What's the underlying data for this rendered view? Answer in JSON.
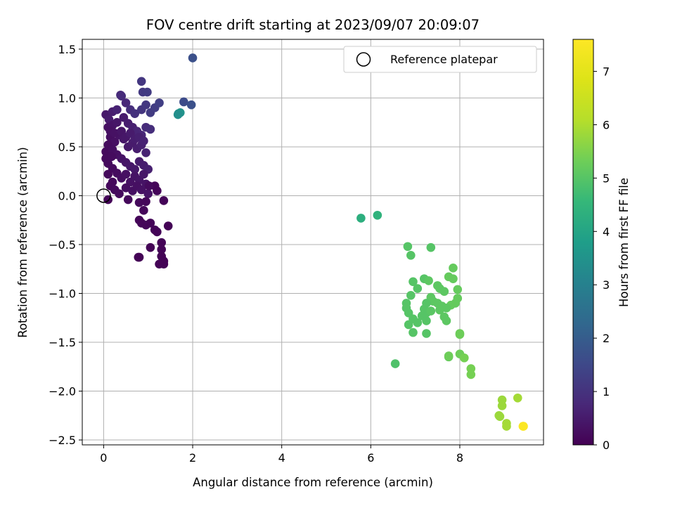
{
  "chart_data": {
    "type": "scatter",
    "title": "FOV centre drift starting at 2023/09/07 20:09:07",
    "xlabel": "Angular distance from reference (arcmin)",
    "ylabel": "Rotation from reference (arcmin)",
    "xlim": [
      -0.48,
      9.88
    ],
    "ylim": [
      -2.55,
      1.6
    ],
    "xticks": [
      0,
      2,
      4,
      6,
      8
    ],
    "xtick_labels": [
      "0",
      "2",
      "4",
      "6",
      "8"
    ],
    "yticks": [
      1.5,
      1.0,
      0.5,
      0.0,
      -0.5,
      -1.0,
      -1.5,
      -2.0,
      -2.5
    ],
    "ytick_labels": [
      "1.5",
      "1.0",
      "0.5",
      "0.0",
      "−0.5",
      "−1.0",
      "−1.5",
      "−2.0",
      "−2.5"
    ],
    "grid": true,
    "legend": {
      "placement": "top-right",
      "entries": [
        "Reference platepar"
      ]
    },
    "reference_point": {
      "x": 0,
      "y": 0,
      "label": "Reference platepar"
    },
    "colorbar": {
      "label": "Hours from first FF file",
      "range": [
        0,
        7.6
      ],
      "ticks": [
        0,
        1,
        2,
        3,
        4,
        5,
        6,
        7
      ],
      "tick_labels": [
        "0",
        "1",
        "2",
        "3",
        "4",
        "5",
        "6",
        "7"
      ],
      "colormap": "viridis"
    },
    "series": [
      {
        "points": [
          [
            0.05,
            0.83,
            0.45
          ],
          [
            0.12,
            0.78,
            0.5
          ],
          [
            0.2,
            0.86,
            0.55
          ],
          [
            0.3,
            0.88,
            0.65
          ],
          [
            0.38,
            1.03,
            0.8
          ],
          [
            0.4,
            1.02,
            0.85
          ],
          [
            0.5,
            0.95,
            0.75
          ],
          [
            0.6,
            0.88,
            0.9
          ],
          [
            0.7,
            0.84,
            1.0
          ],
          [
            0.85,
            0.88,
            1.05
          ],
          [
            0.95,
            0.93,
            1.1
          ],
          [
            1.05,
            0.85,
            1.2
          ],
          [
            1.15,
            0.9,
            1.25
          ],
          [
            1.25,
            0.95,
            1.3
          ],
          [
            0.88,
            1.06,
            1.15
          ],
          [
            0.98,
            1.06,
            1.2
          ],
          [
            0.85,
            1.17,
            1.1
          ],
          [
            2.0,
            1.41,
            1.7
          ],
          [
            1.8,
            0.96,
            1.6
          ],
          [
            1.97,
            0.93,
            1.7
          ],
          [
            1.68,
            0.84,
            3.3
          ],
          [
            1.72,
            0.85,
            3.5
          ],
          [
            1.67,
            0.83,
            3.4
          ],
          [
            0.1,
            0.7,
            0.3
          ],
          [
            0.2,
            0.72,
            0.35
          ],
          [
            0.3,
            0.75,
            0.4
          ],
          [
            0.45,
            0.8,
            0.5
          ],
          [
            0.55,
            0.74,
            0.55
          ],
          [
            0.65,
            0.7,
            0.6
          ],
          [
            0.75,
            0.66,
            0.7
          ],
          [
            0.85,
            0.62,
            0.75
          ],
          [
            0.95,
            0.7,
            0.85
          ],
          [
            1.05,
            0.68,
            0.9
          ],
          [
            0.15,
            0.6,
            0.25
          ],
          [
            0.25,
            0.55,
            0.3
          ],
          [
            0.35,
            0.62,
            0.35
          ],
          [
            0.45,
            0.58,
            0.4
          ],
          [
            0.55,
            0.5,
            0.45
          ],
          [
            0.65,
            0.54,
            0.5
          ],
          [
            0.75,
            0.48,
            0.55
          ],
          [
            0.85,
            0.52,
            0.6
          ],
          [
            0.95,
            0.44,
            0.65
          ],
          [
            0.05,
            0.45,
            0.2
          ],
          [
            0.1,
            0.52,
            0.22
          ],
          [
            0.2,
            0.47,
            0.25
          ],
          [
            0.3,
            0.42,
            0.3
          ],
          [
            0.4,
            0.38,
            0.35
          ],
          [
            0.5,
            0.34,
            0.38
          ],
          [
            0.6,
            0.3,
            0.42
          ],
          [
            0.7,
            0.27,
            0.45
          ],
          [
            0.8,
            0.35,
            0.5
          ],
          [
            0.9,
            0.31,
            0.55
          ],
          [
            1.0,
            0.27,
            0.6
          ],
          [
            0.1,
            0.33,
            0.18
          ],
          [
            0.2,
            0.28,
            0.2
          ],
          [
            0.3,
            0.23,
            0.22
          ],
          [
            0.4,
            0.18,
            0.25
          ],
          [
            0.5,
            0.22,
            0.3
          ],
          [
            0.6,
            0.14,
            0.32
          ],
          [
            0.7,
            0.2,
            0.35
          ],
          [
            0.8,
            0.16,
            0.38
          ],
          [
            0.9,
            0.22,
            0.42
          ],
          [
            0.15,
            0.1,
            0.15
          ],
          [
            0.25,
            0.06,
            0.18
          ],
          [
            0.35,
            0.02,
            0.2
          ],
          [
            0.5,
            0.08,
            0.25
          ],
          [
            0.65,
            0.05,
            0.28
          ],
          [
            0.75,
            0.1,
            0.3
          ],
          [
            0.85,
            0.06,
            0.32
          ],
          [
            0.95,
            0.12,
            0.35
          ],
          [
            1.0,
            0.02,
            0.35
          ],
          [
            0.1,
            0.22,
            0.15
          ],
          [
            0.2,
            0.14,
            0.16
          ],
          [
            0.15,
            0.66,
            0.3
          ],
          [
            0.25,
            0.64,
            0.32
          ],
          [
            0.4,
            0.66,
            0.38
          ],
          [
            0.5,
            0.6,
            0.42
          ],
          [
            0.6,
            0.64,
            0.5
          ],
          [
            0.7,
            0.58,
            0.55
          ],
          [
            0.8,
            0.6,
            0.6
          ],
          [
            0.9,
            0.56,
            0.65
          ],
          [
            0.05,
            0.38,
            0.2
          ],
          [
            0.18,
            0.4,
            0.22
          ],
          [
            0.1,
            -0.04,
            0.1
          ],
          [
            0.55,
            -0.04,
            0.15
          ],
          [
            0.8,
            -0.07,
            0.15
          ],
          [
            0.9,
            -0.15,
            0.12
          ],
          [
            0.8,
            -0.25,
            0.1
          ],
          [
            0.85,
            -0.28,
            0.1
          ],
          [
            0.95,
            -0.3,
            0.1
          ],
          [
            1.05,
            -0.28,
            0.08
          ],
          [
            1.15,
            -0.35,
            0.08
          ],
          [
            1.2,
            -0.37,
            0.08
          ],
          [
            1.3,
            -0.48,
            0.06
          ],
          [
            1.3,
            -0.55,
            0.06
          ],
          [
            1.3,
            -0.62,
            0.05
          ],
          [
            1.35,
            -0.67,
            0.05
          ],
          [
            1.35,
            -0.7,
            0.05
          ],
          [
            1.25,
            -0.7,
            0.05
          ],
          [
            1.05,
            -0.53,
            0.05
          ],
          [
            1.45,
            -0.31,
            0.05
          ],
          [
            0.78,
            -0.63,
            0.04
          ],
          [
            0.8,
            -0.63,
            0.04
          ],
          [
            1.35,
            -0.05,
            0.06
          ],
          [
            1.15,
            0.1,
            0.1
          ],
          [
            1.2,
            0.05,
            0.08
          ],
          [
            0.95,
            -0.06,
            0.12
          ],
          [
            1.02,
            0.1,
            0.2
          ]
        ]
      },
      {
        "points": [
          [
            5.78,
            -0.23,
            4.3
          ],
          [
            6.15,
            -0.2,
            4.4
          ],
          [
            6.83,
            -0.52,
            5.0
          ],
          [
            6.9,
            -0.61,
            5.0
          ],
          [
            7.35,
            -0.53,
            5.0
          ],
          [
            6.95,
            -0.88,
            5.0
          ],
          [
            7.2,
            -0.85,
            5.0
          ],
          [
            7.3,
            -0.87,
            5.1
          ],
          [
            7.5,
            -0.92,
            5.1
          ],
          [
            7.55,
            -0.95,
            5.1
          ],
          [
            7.65,
            -0.98,
            5.1
          ],
          [
            7.75,
            -0.83,
            5.2
          ],
          [
            7.85,
            -0.74,
            5.2
          ],
          [
            7.85,
            -0.85,
            5.2
          ],
          [
            7.95,
            -0.96,
            5.2
          ],
          [
            7.95,
            -1.05,
            5.2
          ],
          [
            7.9,
            -1.1,
            5.2
          ],
          [
            7.8,
            -1.12,
            5.2
          ],
          [
            7.7,
            -1.15,
            5.1
          ],
          [
            7.6,
            -1.13,
            5.1
          ],
          [
            7.5,
            -1.1,
            5.1
          ],
          [
            7.4,
            -1.08,
            5.1
          ],
          [
            7.35,
            -1.04,
            5.1
          ],
          [
            7.25,
            -1.1,
            5.0
          ],
          [
            7.2,
            -1.16,
            5.0
          ],
          [
            7.15,
            -1.23,
            5.0
          ],
          [
            7.05,
            -1.3,
            5.0
          ],
          [
            6.95,
            -1.26,
            5.0
          ],
          [
            6.85,
            -1.2,
            5.0
          ],
          [
            6.8,
            -1.1,
            5.0
          ],
          [
            6.8,
            -1.15,
            5.0
          ],
          [
            6.9,
            -1.02,
            5.0
          ],
          [
            6.85,
            -1.32,
            5.0
          ],
          [
            6.95,
            -1.4,
            5.0
          ],
          [
            7.25,
            -1.28,
            5.0
          ],
          [
            7.25,
            -1.41,
            5.0
          ],
          [
            7.55,
            -1.17,
            5.1
          ],
          [
            7.65,
            -1.24,
            5.1
          ],
          [
            7.7,
            -1.28,
            5.1
          ],
          [
            8.0,
            -1.42,
            5.3
          ],
          [
            8.0,
            -1.41,
            5.3
          ],
          [
            6.55,
            -1.72,
            4.9
          ],
          [
            7.75,
            -1.65,
            5.2
          ],
          [
            7.75,
            -1.64,
            5.3
          ],
          [
            8.0,
            -1.62,
            5.3
          ],
          [
            8.1,
            -1.66,
            5.4
          ],
          [
            8.25,
            -1.77,
            5.4
          ],
          [
            8.25,
            -1.83,
            5.4
          ],
          [
            7.25,
            -1.2,
            5.0
          ],
          [
            7.35,
            -1.18,
            5.05
          ],
          [
            7.05,
            -0.95,
            5.0
          ],
          [
            8.95,
            -2.09,
            5.8
          ],
          [
            8.95,
            -2.15,
            5.8
          ],
          [
            9.3,
            -2.07,
            5.9
          ],
          [
            8.88,
            -2.25,
            5.8
          ],
          [
            8.9,
            -2.26,
            5.8
          ],
          [
            9.05,
            -2.33,
            5.9
          ],
          [
            9.05,
            -2.36,
            5.9
          ],
          [
            9.42,
            -2.36,
            7.5
          ],
          [
            9.43,
            -2.36,
            7.55
          ]
        ]
      }
    ]
  }
}
